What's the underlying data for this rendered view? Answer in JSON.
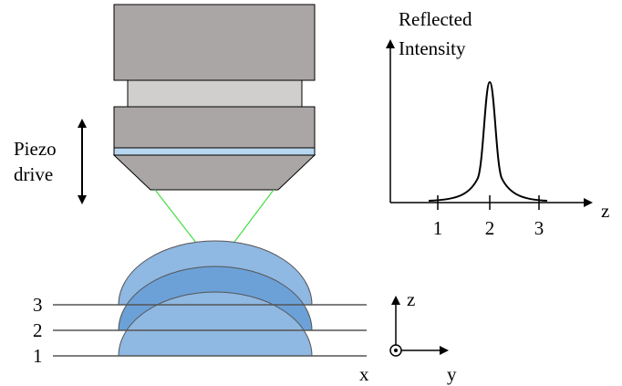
{
  "objective": {
    "label": [
      "Piezo",
      "drive"
    ]
  },
  "plot": {
    "y_label": [
      "Reflected",
      "Intensity"
    ],
    "x_label": "z",
    "ticks": [
      "1",
      "2",
      "3"
    ]
  },
  "layers": {
    "labels": [
      "3",
      "2",
      "1"
    ]
  },
  "axes": {
    "z": "z",
    "x": "x",
    "y": "y"
  }
}
